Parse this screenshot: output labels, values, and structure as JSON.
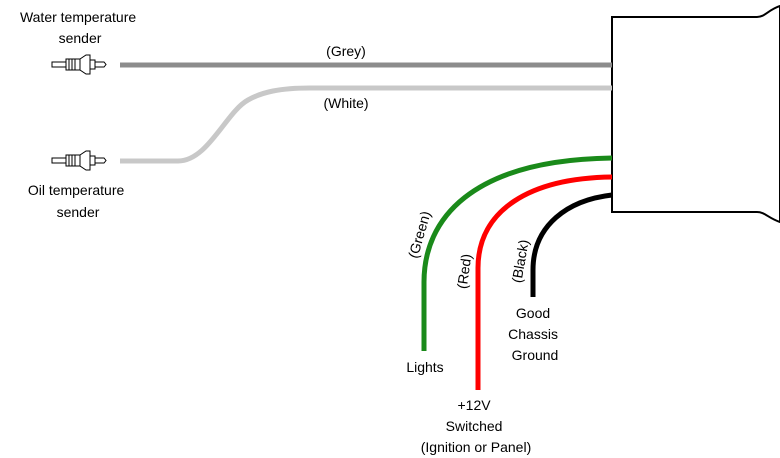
{
  "senders": {
    "water": {
      "line1": "Water temperature",
      "line2": "sender"
    },
    "oil": {
      "line1": "Oil temperature",
      "line2": "sender"
    }
  },
  "wires": {
    "grey": {
      "label": "(Grey)",
      "color": "#8c8c8c"
    },
    "white": {
      "label": "(White)",
      "color": "#c8c8c8"
    },
    "green": {
      "label": "(Green)",
      "color": "#1a8a1a",
      "dest": [
        "Lights"
      ]
    },
    "red": {
      "label": "(Red)",
      "color": "#ff0000",
      "dest": [
        "+12V",
        "Switched",
        "(Ignition or Panel)"
      ]
    },
    "black": {
      "label": "(Black)",
      "color": "#000000",
      "dest": [
        "Good",
        "Chassis",
        "Ground"
      ]
    }
  },
  "gauge_body": {
    "fill": "#ffffff",
    "stroke": "#000000"
  }
}
